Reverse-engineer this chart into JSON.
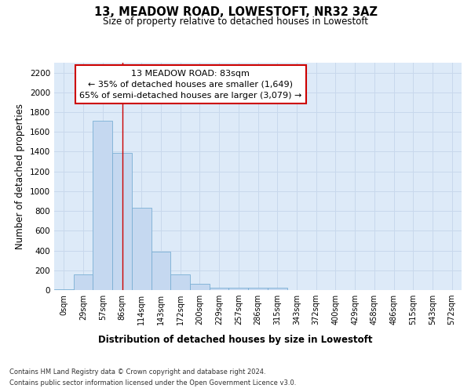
{
  "title": "13, MEADOW ROAD, LOWESTOFT, NR32 3AZ",
  "subtitle": "Size of property relative to detached houses in Lowestoft",
  "xlabel": "Distribution of detached houses by size in Lowestoft",
  "ylabel": "Number of detached properties",
  "bar_color": "#c5d8f0",
  "bar_edge_color": "#7aafd4",
  "bins": [
    "0sqm",
    "29sqm",
    "57sqm",
    "86sqm",
    "114sqm",
    "143sqm",
    "172sqm",
    "200sqm",
    "229sqm",
    "257sqm",
    "286sqm",
    "315sqm",
    "343sqm",
    "372sqm",
    "400sqm",
    "429sqm",
    "458sqm",
    "486sqm",
    "515sqm",
    "543sqm",
    "572sqm"
  ],
  "values": [
    10,
    155,
    1710,
    1390,
    830,
    385,
    160,
    65,
    25,
    20,
    20,
    25,
    0,
    0,
    0,
    0,
    0,
    0,
    0,
    0,
    0
  ],
  "vline_x": 3.0,
  "vline_color": "#cc0000",
  "annotation_text": "13 MEADOW ROAD: 83sqm\n← 35% of detached houses are smaller (1,649)\n65% of semi-detached houses are larger (3,079) →",
  "annotation_box_color": "#ffffff",
  "annotation_box_edge": "#cc0000",
  "ylim": [
    0,
    2300
  ],
  "yticks": [
    0,
    200,
    400,
    600,
    800,
    1000,
    1200,
    1400,
    1600,
    1800,
    2000,
    2200
  ],
  "grid_color": "#c8d8ec",
  "background_color": "#ddeaf8",
  "footer_line1": "Contains HM Land Registry data © Crown copyright and database right 2024.",
  "footer_line2": "Contains public sector information licensed under the Open Government Licence v3.0."
}
